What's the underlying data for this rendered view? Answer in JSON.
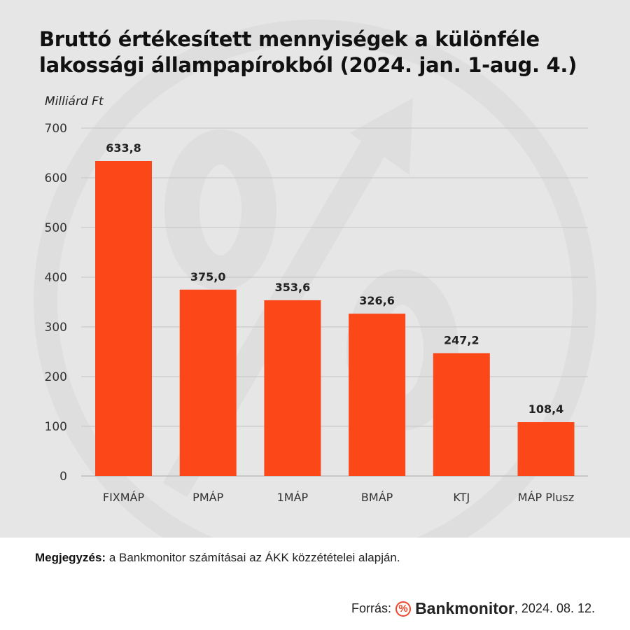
{
  "chart_data": {
    "type": "bar",
    "title": "Bruttó értékesített mennyiségek a különféle lakossági állampapírokból (2024. jan. 1-aug. 4.)",
    "ylabel": "Milliárd Ft",
    "xlabel": "",
    "categories": [
      "FIXMÁP",
      "PMÁP",
      "1MÁP",
      "BMÁP",
      "KTJ",
      "MÁP Plusz"
    ],
    "values": [
      633.8,
      375.0,
      353.6,
      326.6,
      247.2,
      108.4
    ],
    "data_labels": [
      "633,8",
      "375,0",
      "353,6",
      "326,6",
      "247,2",
      "108,4"
    ],
    "ylim": [
      0,
      700
    ],
    "yticks": [
      0,
      100,
      200,
      300,
      400,
      500,
      600,
      700
    ],
    "grid": true,
    "bar_color": "#fc4719",
    "background": "#e6e6e6"
  },
  "note": {
    "label": "Megjegyzés:",
    "text": "a Bankmonitor számításai az ÁKK közzétételei alapján."
  },
  "source": {
    "label": "Forrás:",
    "logo_symbol": "%",
    "brand": "Bankmonitor",
    "date": ", 2024. 08. 12."
  }
}
